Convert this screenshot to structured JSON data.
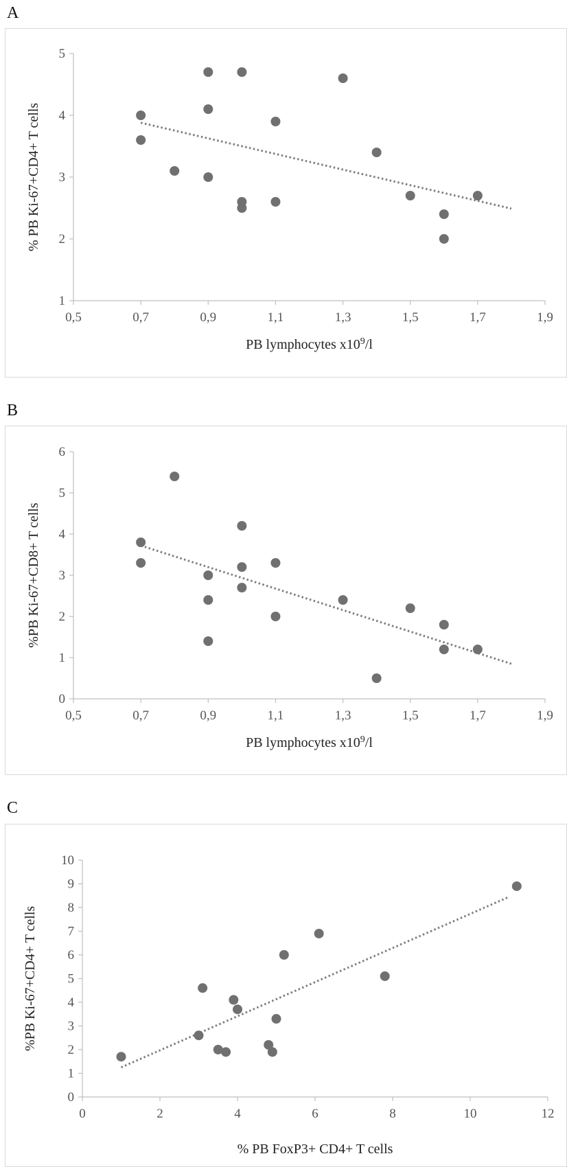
{
  "panels": [
    {
      "letter": "A",
      "chart_data": {
        "type": "scatter",
        "xlabel": "PB lymphocytes x10",
        "xlabel_sup": "9",
        "xlabel_tail": "/l",
        "ylabel": "% PB Ki-67+CD4+ T cells",
        "xlim": [
          0.5,
          1.9
        ],
        "ylim": [
          1,
          5
        ],
        "xticks": [
          0.5,
          0.7,
          0.9,
          1.1,
          1.3,
          1.5,
          1.7,
          1.9
        ],
        "xtick_labels": [
          "0,5",
          "0,7",
          "0,9",
          "1,1",
          "1,3",
          "1,5",
          "1,7",
          "1,9"
        ],
        "yticks": [
          1,
          2,
          3,
          4,
          5
        ],
        "ytick_labels": [
          "1",
          "2",
          "3",
          "4",
          "5"
        ],
        "grid": false,
        "trendline": "linear, dotted",
        "points": [
          {
            "x": 0.7,
            "y": 4.0
          },
          {
            "x": 0.7,
            "y": 3.6
          },
          {
            "x": 0.8,
            "y": 3.1
          },
          {
            "x": 0.9,
            "y": 4.7
          },
          {
            "x": 0.9,
            "y": 4.1
          },
          {
            "x": 0.9,
            "y": 3.0
          },
          {
            "x": 1.0,
            "y": 4.7
          },
          {
            "x": 1.0,
            "y": 2.6
          },
          {
            "x": 1.0,
            "y": 2.5
          },
          {
            "x": 1.1,
            "y": 3.9
          },
          {
            "x": 1.1,
            "y": 2.6
          },
          {
            "x": 1.3,
            "y": 4.6
          },
          {
            "x": 1.4,
            "y": 3.4
          },
          {
            "x": 1.5,
            "y": 2.7
          },
          {
            "x": 1.6,
            "y": 2.4
          },
          {
            "x": 1.6,
            "y": 2.0
          },
          {
            "x": 1.7,
            "y": 2.7
          }
        ],
        "trend": {
          "x0": 0.7,
          "y0": 3.88,
          "x1": 1.8,
          "y1": 2.49
        }
      }
    },
    {
      "letter": "B",
      "chart_data": {
        "type": "scatter",
        "xlabel": "PB lymphocytes x10",
        "xlabel_sup": "9",
        "xlabel_tail": "/l",
        "ylabel": "%PB Ki-67+CD8+ T cells",
        "xlim": [
          0.5,
          1.9
        ],
        "ylim": [
          0,
          6
        ],
        "xticks": [
          0.5,
          0.7,
          0.9,
          1.1,
          1.3,
          1.5,
          1.7,
          1.9
        ],
        "xtick_labels": [
          "0,5",
          "0,7",
          "0,9",
          "1,1",
          "1,3",
          "1,5",
          "1,7",
          "1,9"
        ],
        "yticks": [
          0,
          1,
          2,
          3,
          4,
          5,
          6
        ],
        "ytick_labels": [
          "0",
          "1",
          "2",
          "3",
          "4",
          "5",
          "6"
        ],
        "grid": false,
        "trendline": "linear, dotted",
        "points": [
          {
            "x": 0.7,
            "y": 3.8
          },
          {
            "x": 0.7,
            "y": 3.3
          },
          {
            "x": 0.8,
            "y": 5.4
          },
          {
            "x": 0.9,
            "y": 3.0
          },
          {
            "x": 0.9,
            "y": 2.4
          },
          {
            "x": 0.9,
            "y": 1.4
          },
          {
            "x": 1.0,
            "y": 4.2
          },
          {
            "x": 1.0,
            "y": 3.2
          },
          {
            "x": 1.0,
            "y": 2.7
          },
          {
            "x": 1.1,
            "y": 3.3
          },
          {
            "x": 1.1,
            "y": 2.0
          },
          {
            "x": 1.3,
            "y": 2.4
          },
          {
            "x": 1.4,
            "y": 0.5
          },
          {
            "x": 1.5,
            "y": 2.2
          },
          {
            "x": 1.6,
            "y": 1.8
          },
          {
            "x": 1.6,
            "y": 1.2
          },
          {
            "x": 1.7,
            "y": 1.2
          }
        ],
        "trend": {
          "x0": 0.7,
          "y0": 3.72,
          "x1": 1.8,
          "y1": 0.85
        }
      }
    },
    {
      "letter": "C",
      "chart_data": {
        "type": "scatter",
        "xlabel": "% PB FoxP3+ CD4+ T cells",
        "xlabel_sup": "",
        "xlabel_tail": "",
        "ylabel": "%PB Ki-67+CD4+ T cells",
        "xlim": [
          0,
          12
        ],
        "ylim": [
          0,
          10
        ],
        "xticks": [
          0,
          2,
          4,
          6,
          8,
          10,
          12
        ],
        "xtick_labels": [
          "0",
          "2",
          "4",
          "6",
          "8",
          "10",
          "12"
        ],
        "yticks": [
          0,
          1,
          2,
          3,
          4,
          5,
          6,
          7,
          8,
          9,
          10
        ],
        "ytick_labels": [
          "0",
          "1",
          "2",
          "3",
          "4",
          "5",
          "6",
          "7",
          "8",
          "9",
          "10"
        ],
        "grid": false,
        "trendline": "linear, dotted",
        "points": [
          {
            "x": 1.0,
            "y": 1.7
          },
          {
            "x": 3.0,
            "y": 2.6
          },
          {
            "x": 3.1,
            "y": 4.6
          },
          {
            "x": 3.5,
            "y": 2.0
          },
          {
            "x": 3.7,
            "y": 1.9
          },
          {
            "x": 3.9,
            "y": 4.1
          },
          {
            "x": 4.0,
            "y": 3.7
          },
          {
            "x": 4.8,
            "y": 2.2
          },
          {
            "x": 4.9,
            "y": 1.9
          },
          {
            "x": 5.0,
            "y": 3.3
          },
          {
            "x": 5.2,
            "y": 6.0
          },
          {
            "x": 6.1,
            "y": 6.9
          },
          {
            "x": 7.8,
            "y": 5.1
          },
          {
            "x": 11.2,
            "y": 8.9
          }
        ],
        "trend": {
          "x0": 1.0,
          "y0": 1.25,
          "x1": 11.0,
          "y1": 8.45
        }
      }
    }
  ]
}
